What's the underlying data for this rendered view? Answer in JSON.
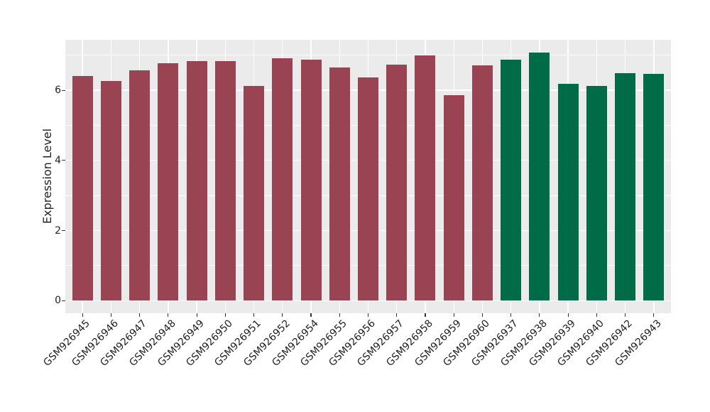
{
  "chart_data": {
    "type": "bar",
    "title": "",
    "xlabel": "",
    "ylabel": "Expression Level",
    "yticks": [
      0,
      2,
      4,
      6
    ],
    "yticks_minor": [
      1,
      3,
      5,
      7
    ],
    "ylim": [
      0,
      7.44
    ],
    "grid": true,
    "legend": "none",
    "panel_background": "#EBEBEB",
    "grid_color": "#FFFFFF",
    "group_colors": [
      "#9A4453",
      "#006B47"
    ],
    "categories": [
      "GSM926945",
      "GSM926946",
      "GSM926947",
      "GSM926948",
      "GSM926949",
      "GSM926950",
      "GSM926951",
      "GSM926952",
      "GSM926954",
      "GSM926955",
      "GSM926956",
      "GSM926957",
      "GSM926958",
      "GSM926959",
      "GSM926960",
      "GSM926937",
      "GSM926938",
      "GSM926939",
      "GSM926940",
      "GSM926942",
      "GSM926943"
    ],
    "values": [
      6.4,
      6.27,
      6.57,
      6.78,
      6.84,
      6.83,
      6.13,
      6.92,
      6.88,
      6.66,
      6.36,
      6.73,
      6.99,
      5.86,
      6.71,
      6.88,
      7.07,
      6.19,
      6.12,
      6.49,
      6.46
    ],
    "colors": [
      "#9A4453",
      "#9A4453",
      "#9A4453",
      "#9A4453",
      "#9A4453",
      "#9A4453",
      "#9A4453",
      "#9A4453",
      "#9A4453",
      "#9A4453",
      "#9A4453",
      "#9A4453",
      "#9A4453",
      "#9A4453",
      "#9A4453",
      "#006B47",
      "#006B47",
      "#006B47",
      "#006B47",
      "#006B47",
      "#006B47"
    ]
  }
}
